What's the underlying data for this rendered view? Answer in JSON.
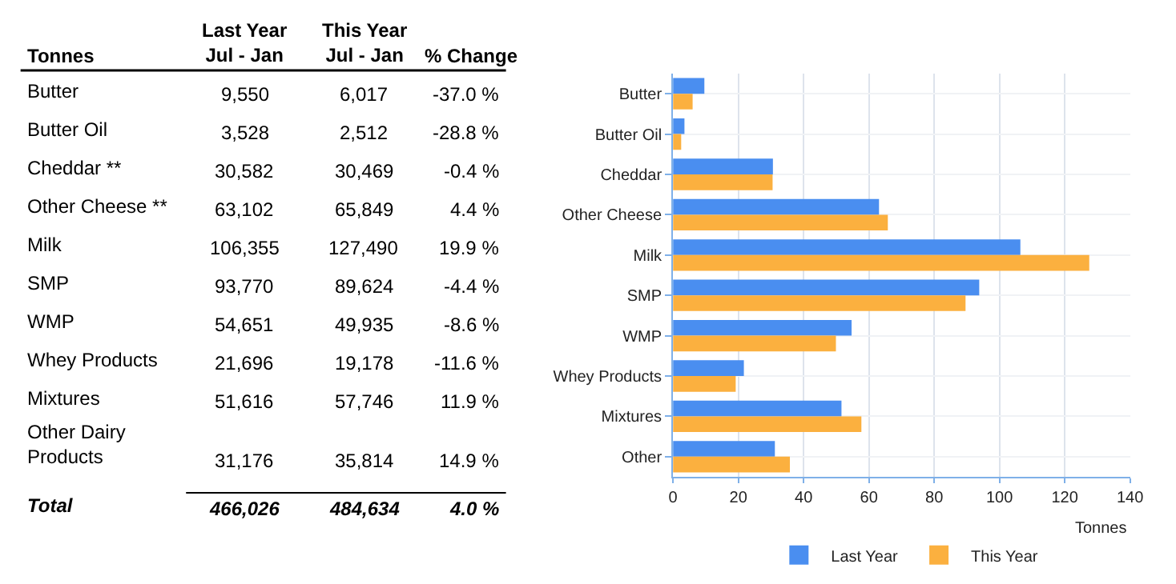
{
  "chart_data": [
    {
      "type": "other",
      "ylabel": "Tonnes",
      "categories": [
        "Butter",
        "Butter Oil",
        "Cheddar **",
        "Other Cheese **",
        "Milk",
        "SMP",
        "WMP",
        "Whey Products",
        "Mixtures",
        "Other Dairy Products",
        "Total"
      ],
      "series": [
        {
          "name": "Last Year Jul - Jan",
          "values": [
            9550,
            3528,
            30582,
            63102,
            106355,
            93770,
            54651,
            21696,
            51616,
            31176,
            466026
          ],
          "value_labels": [
            "9,550",
            "3,528",
            "30,582",
            "63,102",
            "106,355",
            "93,770",
            "54,651",
            "21,696",
            "51,616",
            "31,176",
            "466,026"
          ]
        },
        {
          "name": "This Year Jul - Jan",
          "values": [
            6017,
            2512,
            30469,
            65849,
            127490,
            89624,
            49935,
            19178,
            57746,
            35814,
            484634
          ],
          "value_labels": [
            "6,017",
            "2,512",
            "30,469",
            "65,849",
            "127,490",
            "89,624",
            "49,935",
            "19,178",
            "57,746",
            "35,814",
            "484,634"
          ]
        },
        {
          "name": "% Change",
          "values": [
            -37.0,
            -28.8,
            -0.4,
            4.4,
            19.9,
            -4.4,
            -8.6,
            -11.6,
            11.9,
            14.9,
            4.0
          ],
          "value_labels": [
            "-37.0 %",
            "-28.8 %",
            "-0.4 %",
            "4.4 %",
            "19.9 %",
            "-4.4 %",
            "-8.6 %",
            "-11.6 %",
            "11.9 %",
            "14.9 %",
            "4.0 %"
          ]
        }
      ]
    },
    {
      "type": "bar",
      "orientation": "horizontal",
      "xlabel": "Tonnes",
      "categories": [
        "Butter",
        "Butter Oil",
        "Cheddar",
        "Other Cheese",
        "Milk",
        "SMP",
        "WMP",
        "Whey Products",
        "Mixtures",
        "Other"
      ],
      "series": [
        {
          "name": "Last Year",
          "color": "#4a8ef0",
          "values": [
            9.6,
            3.5,
            30.6,
            63.1,
            106.4,
            93.8,
            54.7,
            21.7,
            51.6,
            31.2
          ]
        },
        {
          "name": "This Year",
          "color": "#fbb03f",
          "values": [
            6.0,
            2.5,
            30.5,
            65.8,
            127.5,
            89.6,
            49.9,
            19.2,
            57.7,
            35.8
          ]
        }
      ],
      "xlim": [
        0,
        140
      ],
      "xticks": [
        0,
        20,
        40,
        60,
        80,
        100,
        120,
        140
      ],
      "grid": true,
      "legend": "bottom"
    }
  ]
}
